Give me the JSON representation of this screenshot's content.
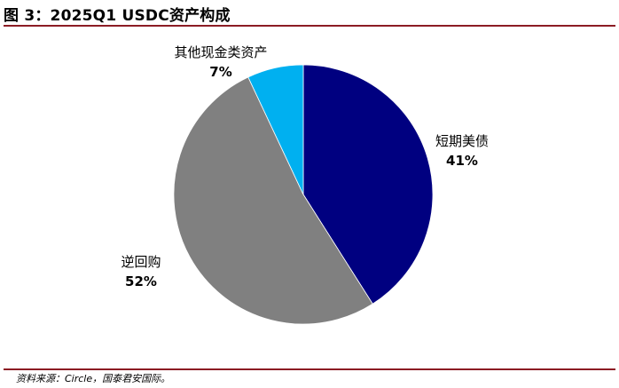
{
  "title": "图 3：2025Q1 USDC资产构成",
  "source": "资料来源：Circle，国泰君安国际。",
  "chart_data": {
    "type": "pie",
    "title": "图 3：2025Q1 USDC资产构成",
    "start_angle_deg": 0,
    "direction": "clockwise",
    "slices": [
      {
        "label": "短期美债",
        "value": 41,
        "value_label": "41%",
        "color": "#000080"
      },
      {
        "label": "逆回购",
        "value": 52,
        "value_label": "52%",
        "color": "#808080"
      },
      {
        "label": "其他现金类资产",
        "value": 7,
        "value_label": "7%",
        "color": "#00b0f0"
      }
    ]
  }
}
